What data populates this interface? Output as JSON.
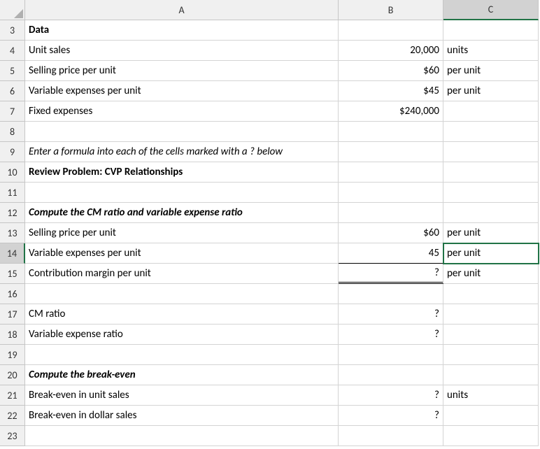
{
  "columns": [
    "A",
    "B",
    "C"
  ],
  "row_start": 3,
  "row_end": 23,
  "selected_cell": {
    "col": "C",
    "row": 14
  },
  "cells": {
    "A3": {
      "v": "Data",
      "bold": true
    },
    "A4": {
      "v": "Unit sales"
    },
    "B4": {
      "v": "20,000",
      "num": true
    },
    "C4": {
      "v": "units"
    },
    "A5": {
      "v": "Selling price per unit"
    },
    "B5": {
      "v": "$60",
      "num": true
    },
    "C5": {
      "v": "per unit"
    },
    "A6": {
      "v": "Variable expenses per unit"
    },
    "B6": {
      "v": "$45",
      "num": true
    },
    "C6": {
      "v": "per unit"
    },
    "A7": {
      "v": "Fixed expenses"
    },
    "B7": {
      "v": "$240,000",
      "num": true
    },
    "A9": {
      "v": "Enter a formula into each of the cells marked with a ? below",
      "italic": true,
      "overflow": true
    },
    "A10": {
      "v": "Review Problem: CVP Relationships",
      "bold": true
    },
    "A12": {
      "v": "Compute the CM ratio and variable expense ratio",
      "bold": true,
      "italic": true,
      "overflow": true
    },
    "A13": {
      "v": "Selling price per unit"
    },
    "B13": {
      "v": "$60",
      "num": true
    },
    "C13": {
      "v": "per unit"
    },
    "A14": {
      "v": "Variable expenses per unit"
    },
    "B14": {
      "v": "45",
      "num": true,
      "under": true
    },
    "C14": {
      "v": "per unit"
    },
    "A15": {
      "v": "Contribution margin per unit"
    },
    "B15": {
      "v": "?",
      "num": true,
      "dbl": true
    },
    "C15": {
      "v": "per unit"
    },
    "A17": {
      "v": "CM ratio"
    },
    "B17": {
      "v": "?",
      "num": true
    },
    "A18": {
      "v": "Variable expense ratio"
    },
    "B18": {
      "v": "?",
      "num": true
    },
    "A20": {
      "v": "Compute the break-even",
      "bold": true,
      "italic": true
    },
    "A21": {
      "v": "Break-even in unit sales"
    },
    "B21": {
      "v": "?",
      "num": true
    },
    "C21": {
      "v": "units"
    },
    "A22": {
      "v": "Break-even in dollar sales"
    },
    "B22": {
      "v": "?",
      "num": true
    }
  },
  "colors": {
    "grid": "#d4d4d4",
    "header_bg": "#f0f0f0",
    "header_border": "#c6c6c6",
    "select": "#217346",
    "sel_header": "#d2d2d2"
  }
}
